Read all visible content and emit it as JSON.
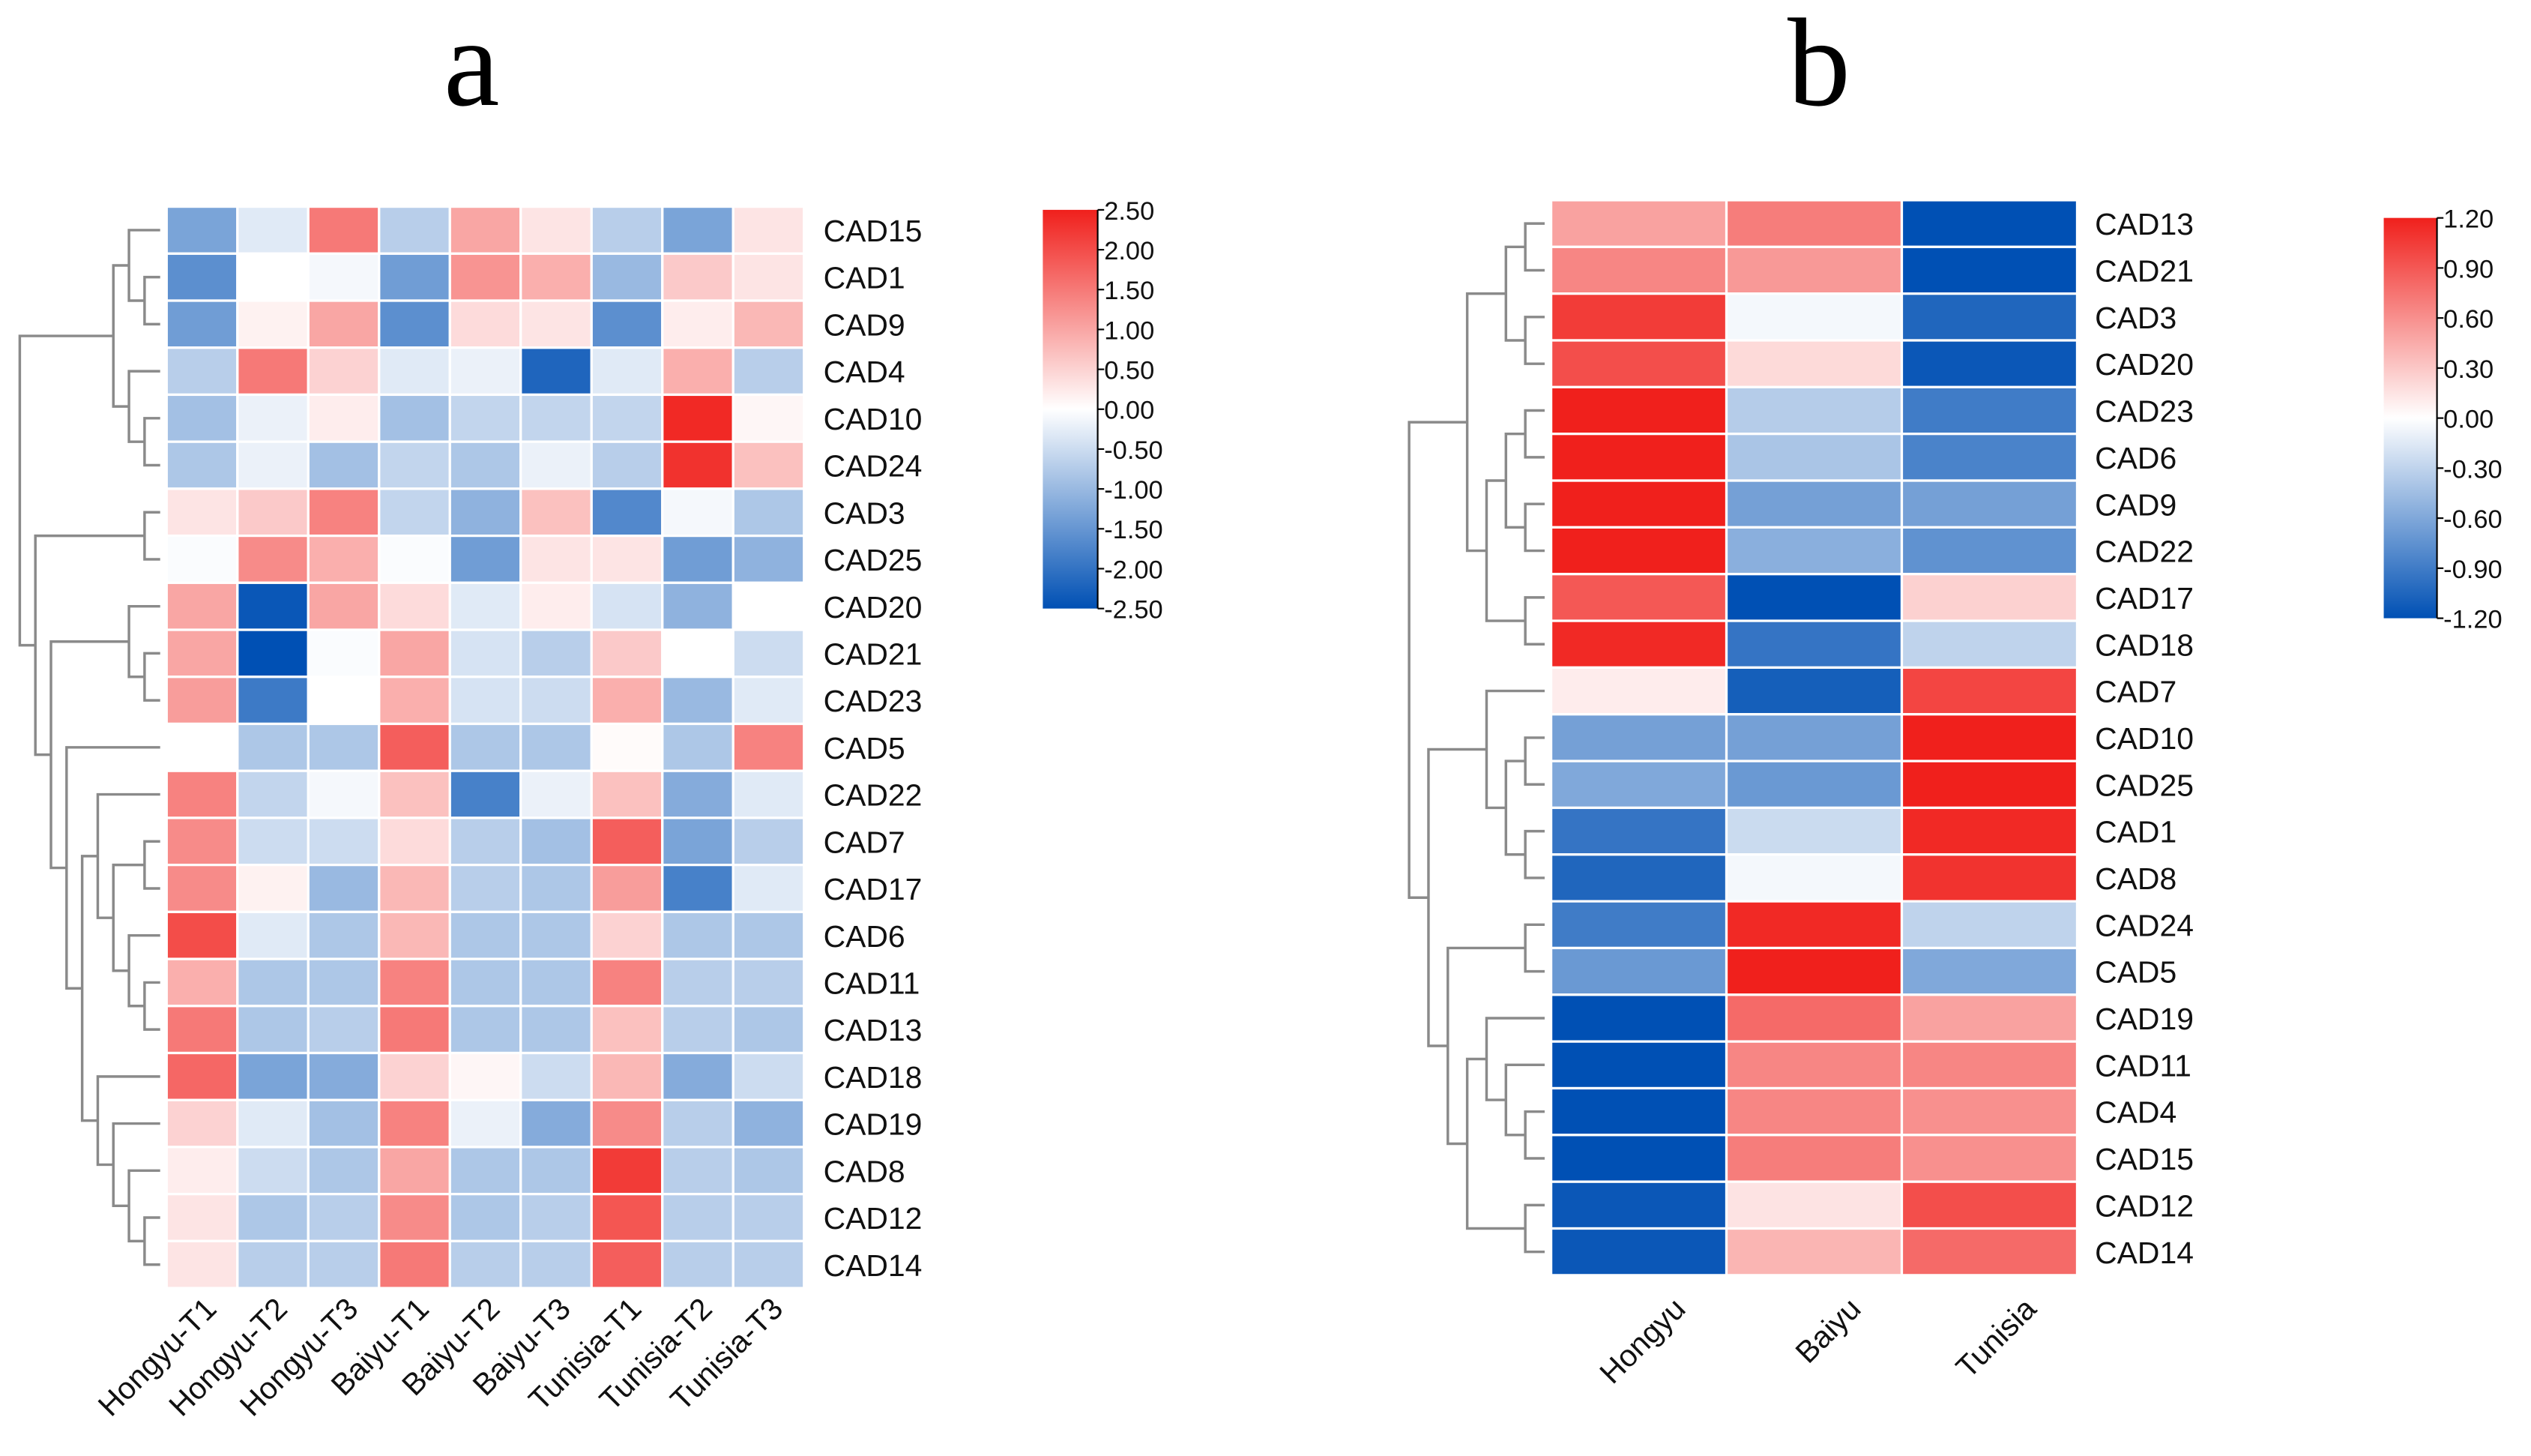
{
  "chart_data": [
    {
      "type": "heatmap",
      "title": "a",
      "columns": [
        "Hongyu-T1",
        "Hongyu-T2",
        "Hongyu-T3",
        "Baiyu-T1",
        "Baiyu-T2",
        "Baiyu-T3",
        "Tunisia-T1",
        "Tunisia-T2",
        "Tunisia-T3"
      ],
      "rows": [
        "CAD15",
        "CAD1",
        "CAD9",
        "CAD4",
        "CAD10",
        "CAD24",
        "CAD3",
        "CAD25",
        "CAD20",
        "CAD21",
        "CAD23",
        "CAD5",
        "CAD22",
        "CAD7",
        "CAD17",
        "CAD6",
        "CAD11",
        "CAD13",
        "CAD18",
        "CAD19",
        "CAD8",
        "CAD12",
        "CAD14"
      ],
      "values": [
        [
          -1.3,
          -0.3,
          1.5,
          -0.7,
          1.0,
          0.3,
          -0.7,
          -1.3,
          0.3
        ],
        [
          -1.6,
          0.0,
          -0.1,
          -1.4,
          1.2,
          0.9,
          -1.0,
          0.6,
          0.3
        ],
        [
          -1.4,
          0.15,
          1.0,
          -1.6,
          0.4,
          0.3,
          -1.6,
          0.2,
          0.8
        ],
        [
          -0.7,
          1.5,
          0.5,
          -0.3,
          -0.2,
          -2.2,
          -0.3,
          0.9,
          -0.7
        ],
        [
          -0.9,
          -0.2,
          0.2,
          -0.9,
          -0.6,
          -0.6,
          -0.6,
          2.4,
          0.1
        ],
        [
          -0.8,
          -0.2,
          -0.9,
          -0.6,
          -0.8,
          -0.2,
          -0.7,
          2.3,
          0.7
        ],
        [
          0.3,
          0.6,
          1.4,
          -0.6,
          -1.1,
          0.7,
          -1.7,
          -0.1,
          -0.8
        ],
        [
          -0.05,
          1.3,
          0.9,
          -0.05,
          -1.4,
          0.3,
          0.3,
          -1.4,
          -1.1
        ],
        [
          1.0,
          -2.4,
          1.0,
          0.4,
          -0.3,
          0.2,
          -0.4,
          -1.1,
          0.0
        ],
        [
          1.0,
          -2.5,
          -0.05,
          1.0,
          -0.4,
          -0.7,
          0.6,
          0.0,
          -0.5
        ],
        [
          1.1,
          -1.9,
          0.0,
          0.9,
          -0.4,
          -0.5,
          0.9,
          -1.0,
          -0.3
        ],
        [
          0.0,
          -0.8,
          -0.8,
          1.8,
          -0.8,
          -0.8,
          0.05,
          -0.8,
          1.4
        ],
        [
          1.4,
          -0.6,
          -0.1,
          0.7,
          -1.8,
          -0.2,
          0.7,
          -1.2,
          -0.3
        ],
        [
          1.3,
          -0.5,
          -0.5,
          0.4,
          -0.7,
          -0.9,
          1.8,
          -1.3,
          -0.7
        ],
        [
          1.3,
          0.15,
          -1.0,
          0.8,
          -0.7,
          -0.8,
          1.1,
          -1.8,
          -0.3
        ],
        [
          2.0,
          -0.3,
          -0.8,
          0.8,
          -0.8,
          -0.8,
          0.5,
          -0.8,
          -0.8
        ],
        [
          0.9,
          -0.8,
          -0.8,
          1.4,
          -0.8,
          -0.8,
          1.4,
          -0.7,
          -0.7
        ],
        [
          1.5,
          -0.8,
          -0.7,
          1.5,
          -0.8,
          -0.8,
          0.7,
          -0.7,
          -0.8
        ],
        [
          1.7,
          -1.3,
          -1.2,
          0.5,
          0.1,
          -0.5,
          0.8,
          -1.2,
          -0.5
        ],
        [
          0.5,
          -0.3,
          -0.9,
          1.4,
          -0.2,
          -1.2,
          1.3,
          -0.7,
          -1.1
        ],
        [
          0.2,
          -0.5,
          -0.8,
          1.0,
          -0.8,
          -0.8,
          2.2,
          -0.7,
          -0.8
        ],
        [
          0.3,
          -0.8,
          -0.7,
          1.3,
          -0.8,
          -0.7,
          1.9,
          -0.7,
          -0.7
        ],
        [
          0.3,
          -0.7,
          -0.7,
          1.5,
          -0.7,
          -0.7,
          1.8,
          -0.7,
          -0.7
        ]
      ],
      "scale_range": [
        -2.5,
        2.5
      ],
      "colorbar_ticks": [
        "2.50",
        "2.00",
        "1.50",
        "1.00",
        "0.50",
        "0.00",
        "-0.50",
        "-1.00",
        "-1.50",
        "-2.00",
        "-2.50"
      ],
      "colors": {
        "low": "#0050b4",
        "mid": "#ffffff",
        "high": "#f0201c"
      },
      "row_dendrogram": [
        [
          [
            "CAD15",
            [
              "CAD1",
              "CAD9"
            ]
          ],
          [
            "CAD4",
            [
              "CAD10",
              "CAD24"
            ]
          ]
        ],
        [
          [
            "CAD3",
            "CAD25"
          ],
          [
            [
              "CAD20",
              [
                "CAD21",
                "CAD23"
              ]
            ],
            [
              "CAD5",
              [
                [
                  "CAD22",
                  [
                    [
                      "CAD7",
                      "CAD17"
                    ],
                    [
                      "CAD6",
                      [
                        "CAD11",
                        "CAD13"
                      ]
                    ]
                  ]
                ],
                [
                  "CAD18",
                  [
                    "CAD19",
                    [
                      "CAD8",
                      [
                        "CAD12",
                        "CAD14"
                      ]
                    ]
                  ]
                ]
              ]
            ]
          ]
        ]
      ]
    },
    {
      "type": "heatmap",
      "title": "b",
      "columns": [
        "Hongyu",
        "Baiyu",
        "Tunisia"
      ],
      "rows": [
        "CAD13",
        "CAD21",
        "CAD3",
        "CAD20",
        "CAD23",
        "CAD6",
        "CAD9",
        "CAD22",
        "CAD17",
        "CAD18",
        "CAD7",
        "CAD10",
        "CAD25",
        "CAD1",
        "CAD8",
        "CAD24",
        "CAD5",
        "CAD19",
        "CAD11",
        "CAD4",
        "CAD15",
        "CAD12",
        "CAD14"
      ],
      "values": [
        [
          0.5,
          0.7,
          -1.2
        ],
        [
          0.65,
          0.55,
          -1.2
        ],
        [
          1.05,
          -0.05,
          -1.05
        ],
        [
          0.95,
          0.2,
          -1.15
        ],
        [
          1.2,
          -0.35,
          -0.9
        ],
        [
          1.2,
          -0.4,
          -0.85
        ],
        [
          1.2,
          -0.65,
          -0.65
        ],
        [
          1.2,
          -0.55,
          -0.75
        ],
        [
          0.9,
          -1.2,
          0.25
        ],
        [
          1.15,
          -0.95,
          -0.3
        ],
        [
          0.1,
          -1.1,
          1.0
        ],
        [
          -0.65,
          -0.65,
          1.2
        ],
        [
          -0.6,
          -0.7,
          1.2
        ],
        [
          -0.95,
          -0.25,
          1.15
        ],
        [
          -1.05,
          -0.05,
          1.1
        ],
        [
          -0.9,
          1.15,
          -0.3
        ],
        [
          -0.7,
          1.2,
          -0.6
        ],
        [
          -1.2,
          0.8,
          0.5
        ],
        [
          -1.2,
          0.65,
          0.65
        ],
        [
          -1.2,
          0.65,
          0.6
        ],
        [
          -1.2,
          0.7,
          0.6
        ],
        [
          -1.15,
          0.15,
          0.95
        ],
        [
          -1.15,
          0.4,
          0.8
        ]
      ],
      "scale_range": [
        -1.2,
        1.2
      ],
      "colorbar_ticks": [
        "1.20",
        "0.90",
        "0.60",
        "0.30",
        "0.00",
        "-0.30",
        "-0.60",
        "-0.90",
        "-1.20"
      ],
      "colors": {
        "low": "#0050b4",
        "mid": "#ffffff",
        "high": "#f0201c"
      },
      "row_dendrogram": [
        [
          [
            [
              "CAD13",
              "CAD21"
            ],
            [
              "CAD3",
              "CAD20"
            ]
          ],
          [
            [
              [
                "CAD23",
                "CAD6"
              ],
              [
                "CAD9",
                "CAD22"
              ]
            ],
            [
              "CAD17",
              "CAD18"
            ]
          ]
        ],
        [
          [
            "CAD7",
            [
              [
                "CAD10",
                "CAD25"
              ],
              [
                "CAD1",
                "CAD8"
              ]
            ]
          ],
          [
            [
              "CAD24",
              "CAD5"
            ],
            [
              [
                "CAD19",
                [
                  "CAD11",
                  [
                    "CAD4",
                    "CAD15"
                  ]
                ]
              ],
              [
                "CAD12",
                "CAD14"
              ]
            ]
          ]
        ]
      ]
    }
  ]
}
